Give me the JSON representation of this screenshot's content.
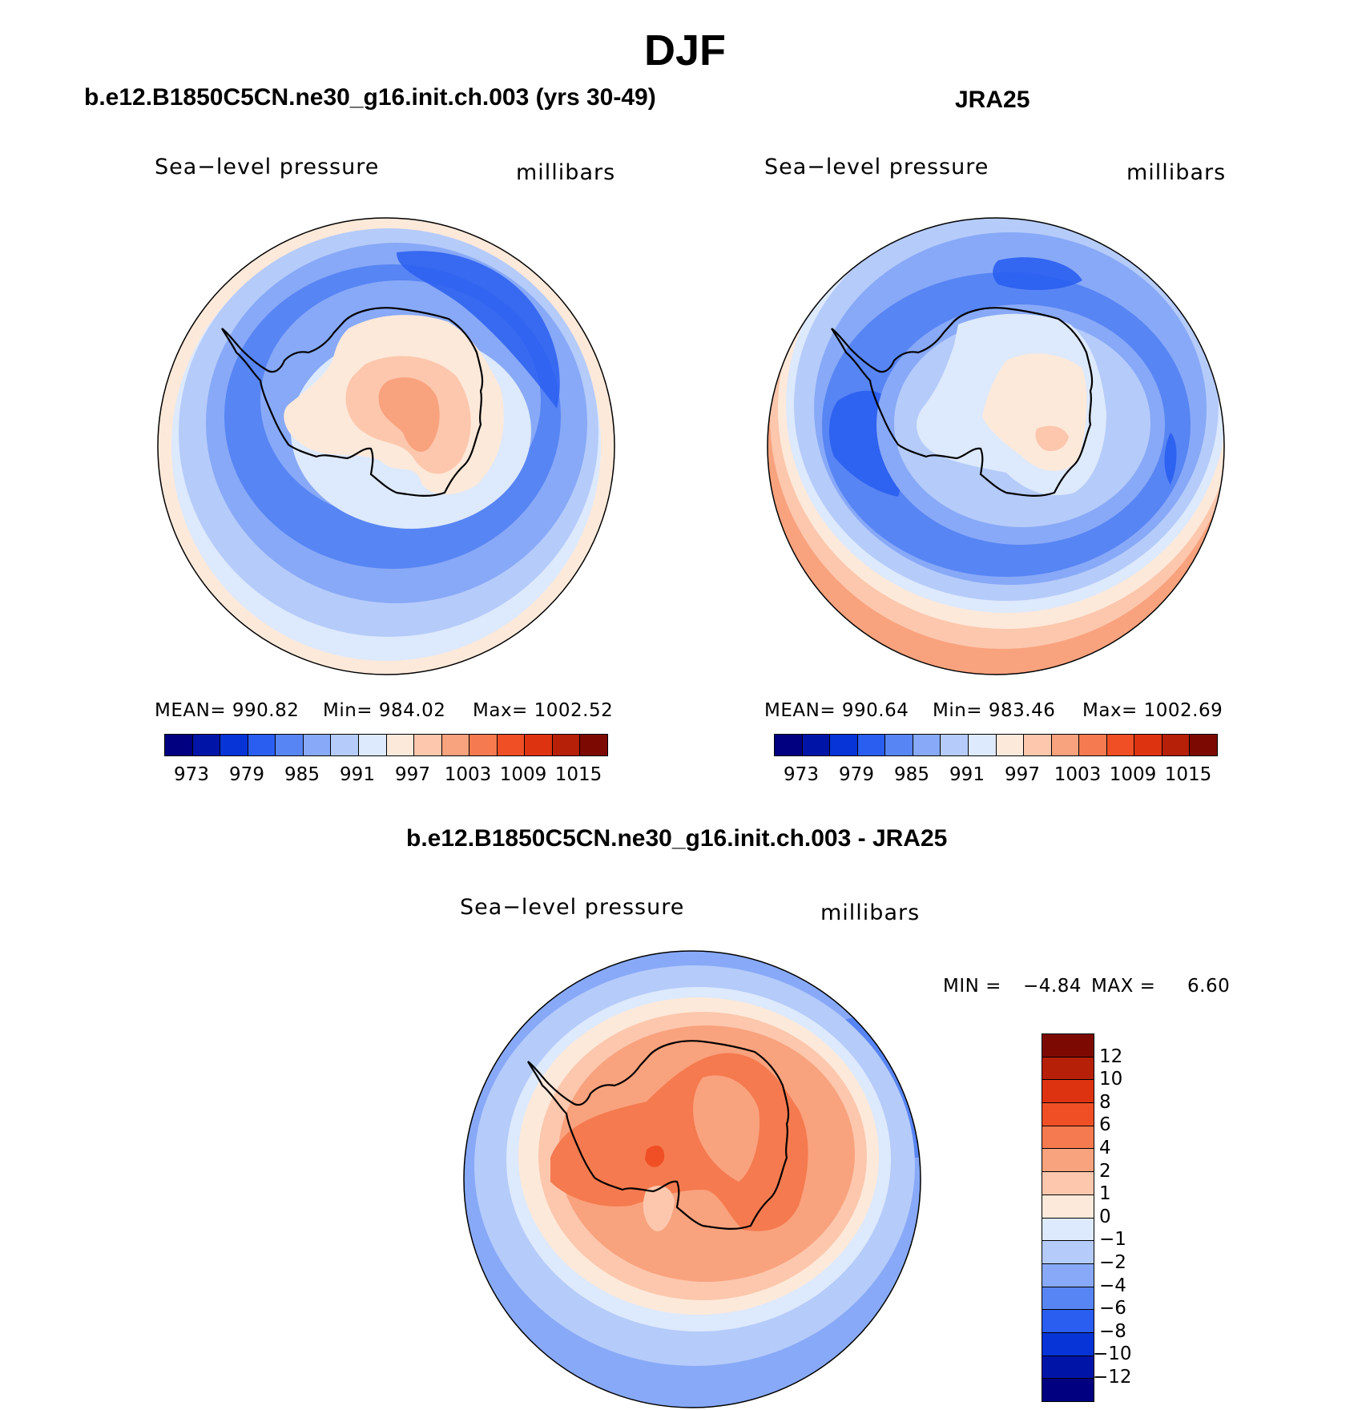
{
  "figure": {
    "title": "DJF"
  },
  "panels": [
    {
      "title": "b.e12.B1850C5CN.ne30_g16.init.ch.003 (yrs 30-49)",
      "variable": "Sea−level pressure",
      "units": "millibars",
      "stats": {
        "mean": "MEAN= 990.82",
        "min": "Min= 984.02",
        "max": "Max= 1002.52"
      }
    },
    {
      "title": "JRA25",
      "variable": "Sea−level pressure",
      "units": "millibars",
      "stats": {
        "mean": "MEAN= 990.64",
        "min": "Min= 983.46",
        "max": "Max= 1002.69"
      }
    },
    {
      "title": "b.e12.B1850C5CN.ne30_g16.init.ch.003 - JRA25",
      "variable": "Sea−level pressure",
      "units": "millibars",
      "stats": {
        "min_label": "MIN =",
        "min_value": "−4.84",
        "max_label": "MAX =",
        "max_value": "6.60"
      }
    }
  ],
  "chart_data": [
    {
      "type": "map",
      "projection": "south-polar stereographic",
      "region": "Antarctica",
      "title": "b.e12.B1850C5CN.ne30_g16.init.ch.003 (yrs 30-49)",
      "variable": "Sea-level pressure",
      "units": "millibars",
      "stats": {
        "mean": 990.82,
        "min": 984.02,
        "max": 1002.52
      },
      "colorbar": {
        "orientation": "horizontal",
        "ticks": [
          "973",
          "979",
          "985",
          "991",
          "997",
          "1003",
          "1009",
          "1015"
        ],
        "colors": [
          "#000080",
          "#0014a8",
          "#0634d6",
          "#2a5ef0",
          "#5885f4",
          "#88a9f7",
          "#b5cbfa",
          "#dde9fc",
          "#fde9da",
          "#fcc7ad",
          "#f9a27e",
          "#f57a4f",
          "#f04f25",
          "#de3310",
          "#b61f08",
          "#7c0a02"
        ]
      }
    },
    {
      "type": "map",
      "projection": "south-polar stereographic",
      "region": "Antarctica",
      "title": "JRA25",
      "variable": "Sea-level pressure",
      "units": "millibars",
      "stats": {
        "mean": 990.64,
        "min": 983.46,
        "max": 1002.69
      },
      "colorbar": {
        "orientation": "horizontal",
        "ticks": [
          "973",
          "979",
          "985",
          "991",
          "997",
          "1003",
          "1009",
          "1015"
        ],
        "colors": [
          "#000080",
          "#0014a8",
          "#0634d6",
          "#2a5ef0",
          "#5885f4",
          "#88a9f7",
          "#b5cbfa",
          "#dde9fc",
          "#fde9da",
          "#fcc7ad",
          "#f9a27e",
          "#f57a4f",
          "#f04f25",
          "#de3310",
          "#b61f08",
          "#7c0a02"
        ]
      }
    },
    {
      "type": "map",
      "projection": "south-polar stereographic",
      "region": "Antarctica",
      "title": "b.e12.B1850C5CN.ne30_g16.init.ch.003 - JRA25",
      "variable": "Sea-level pressure",
      "units": "millibars",
      "stats": {
        "min": -4.84,
        "max": 6.6
      },
      "colorbar": {
        "orientation": "vertical",
        "ticks": [
          "12",
          "10",
          "8",
          "6",
          "4",
          "2",
          "1",
          "0",
          "−1",
          "−2",
          "−4",
          "−6",
          "−8",
          "−10",
          "−12"
        ],
        "colors": [
          "#7c0a02",
          "#b61f08",
          "#de3310",
          "#f04f25",
          "#f57a4f",
          "#f9a27e",
          "#fcc7ad",
          "#fde9da",
          "#dde9fc",
          "#b5cbfa",
          "#88a9f7",
          "#5885f4",
          "#2a5ef0",
          "#0634d6",
          "#0014a8",
          "#000080"
        ]
      }
    }
  ]
}
